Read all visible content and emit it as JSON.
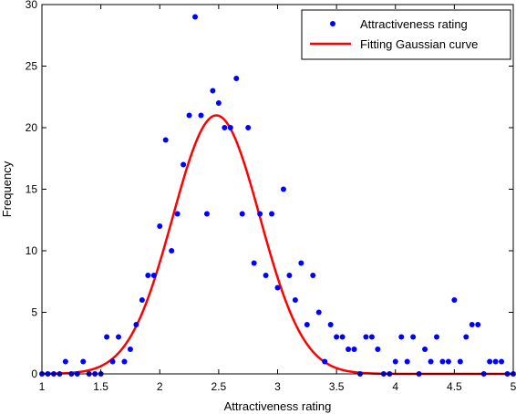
{
  "chart_data": {
    "type": "scatter",
    "xlabel": "Attractiveness rating",
    "ylabel": "Frequency",
    "xlim": [
      1,
      5
    ],
    "ylim": [
      0,
      30
    ],
    "xticks": [
      1,
      1.5,
      2,
      2.5,
      3,
      3.5,
      4,
      4.5,
      5
    ],
    "xtick_labels": [
      "1",
      "1.5",
      "2",
      "2.5",
      "3",
      "3.5",
      "4",
      "4.5",
      "5"
    ],
    "yticks": [
      0,
      5,
      10,
      15,
      20,
      25,
      30
    ],
    "ytick_labels": [
      "0",
      "5",
      "10",
      "15",
      "20",
      "25",
      "30"
    ],
    "grid": false,
    "legend_position": "top-right",
    "series": [
      {
        "name": "Attractiveness rating",
        "kind": "points",
        "color": "#0000ff",
        "points": [
          [
            1.0,
            0
          ],
          [
            1.05,
            0
          ],
          [
            1.1,
            0
          ],
          [
            1.15,
            0
          ],
          [
            1.2,
            1
          ],
          [
            1.25,
            0
          ],
          [
            1.3,
            0
          ],
          [
            1.35,
            1
          ],
          [
            1.4,
            0
          ],
          [
            1.45,
            0
          ],
          [
            1.5,
            0
          ],
          [
            1.55,
            3
          ],
          [
            1.6,
            1
          ],
          [
            1.65,
            3
          ],
          [
            1.7,
            1
          ],
          [
            1.75,
            2
          ],
          [
            1.8,
            4
          ],
          [
            1.85,
            6
          ],
          [
            1.9,
            8
          ],
          [
            1.95,
            8
          ],
          [
            2.0,
            12
          ],
          [
            2.05,
            19
          ],
          [
            2.1,
            10
          ],
          [
            2.15,
            13
          ],
          [
            2.2,
            17
          ],
          [
            2.25,
            21
          ],
          [
            2.3,
            29
          ],
          [
            2.35,
            21
          ],
          [
            2.4,
            13
          ],
          [
            2.45,
            23
          ],
          [
            2.5,
            22
          ],
          [
            2.55,
            20
          ],
          [
            2.6,
            20
          ],
          [
            2.65,
            24
          ],
          [
            2.7,
            13
          ],
          [
            2.75,
            20
          ],
          [
            2.8,
            9
          ],
          [
            2.85,
            13
          ],
          [
            2.9,
            8
          ],
          [
            2.95,
            13
          ],
          [
            3.0,
            7
          ],
          [
            3.05,
            15
          ],
          [
            3.1,
            8
          ],
          [
            3.15,
            6
          ],
          [
            3.2,
            9
          ],
          [
            3.25,
            4
          ],
          [
            3.3,
            8
          ],
          [
            3.35,
            5
          ],
          [
            3.4,
            1
          ],
          [
            3.45,
            4
          ],
          [
            3.5,
            3
          ],
          [
            3.55,
            3
          ],
          [
            3.6,
            2
          ],
          [
            3.65,
            2
          ],
          [
            3.7,
            0
          ],
          [
            3.75,
            3
          ],
          [
            3.8,
            3
          ],
          [
            3.85,
            2
          ],
          [
            3.9,
            0
          ],
          [
            3.95,
            0
          ],
          [
            4.0,
            1
          ],
          [
            4.05,
            3
          ],
          [
            4.1,
            1
          ],
          [
            4.15,
            3
          ],
          [
            4.2,
            0
          ],
          [
            4.25,
            2
          ],
          [
            4.3,
            1
          ],
          [
            4.35,
            3
          ],
          [
            4.4,
            1
          ],
          [
            4.45,
            1
          ],
          [
            4.5,
            6
          ],
          [
            4.55,
            1
          ],
          [
            4.6,
            3
          ],
          [
            4.65,
            4
          ],
          [
            4.7,
            4
          ],
          [
            4.75,
            0
          ],
          [
            4.8,
            1
          ],
          [
            4.85,
            1
          ],
          [
            4.9,
            1
          ],
          [
            4.95,
            0
          ],
          [
            5.0,
            0
          ]
        ]
      },
      {
        "name": "Fitting Gaussian curve",
        "kind": "line",
        "color": "#ff0000",
        "gaussian": {
          "amplitude": 21,
          "mean": 2.48,
          "sigma": 0.37
        }
      }
    ]
  }
}
